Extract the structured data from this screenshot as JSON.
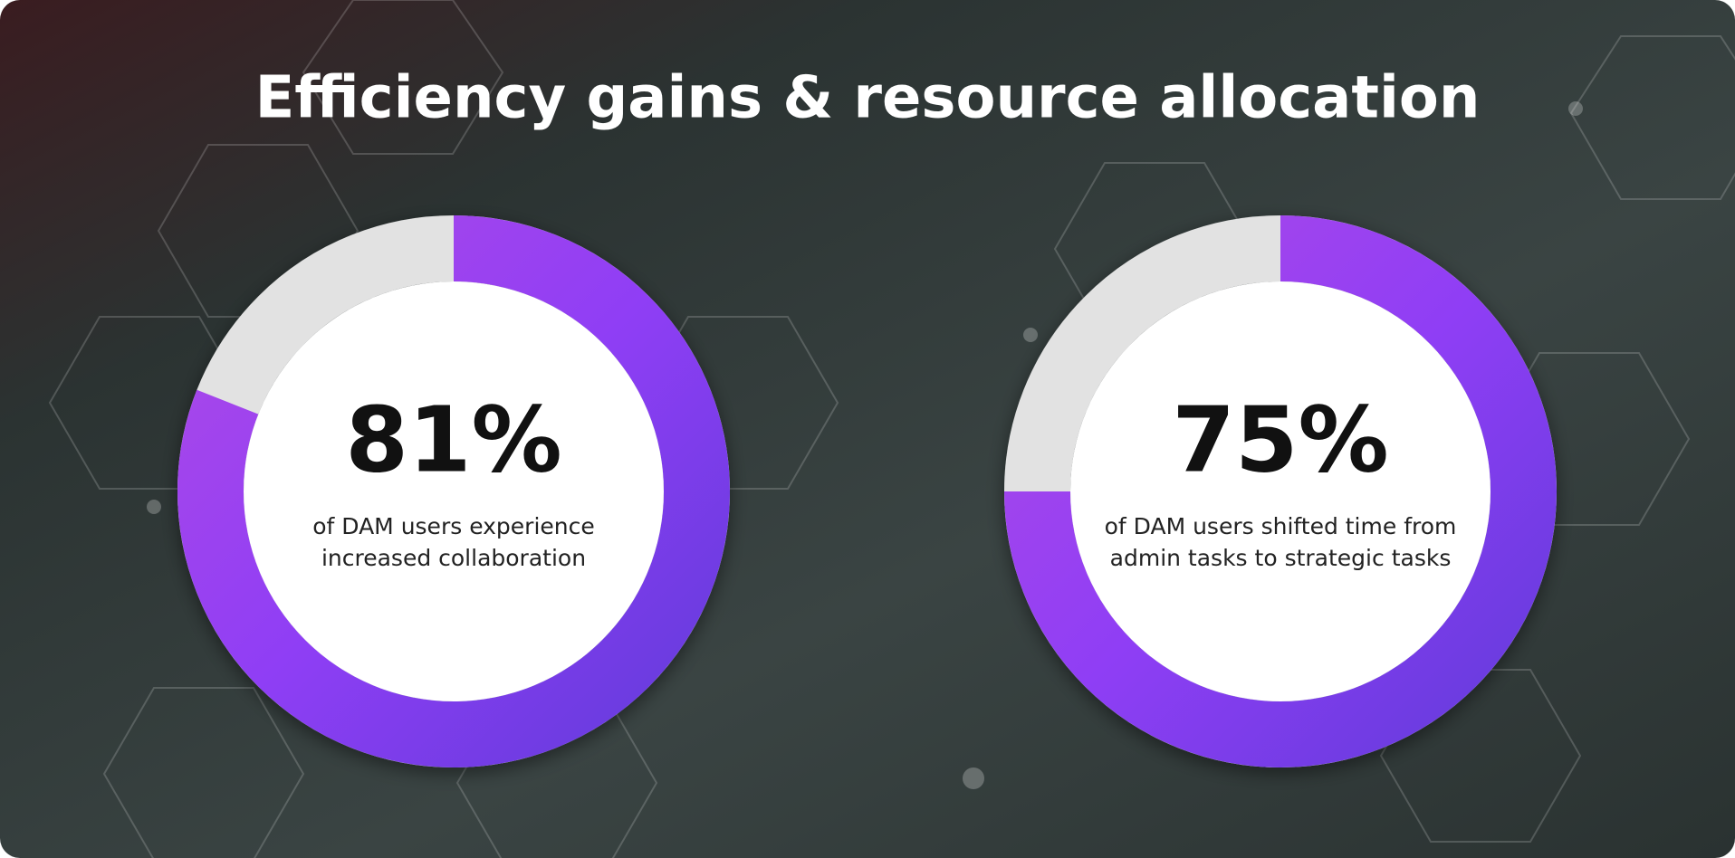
{
  "title": "Efficiency gains  & resource allocation",
  "chart_data": [
    {
      "type": "donut",
      "values": [
        81
      ],
      "value_labels": [
        "81%"
      ],
      "ylim": [
        0,
        100
      ],
      "color": "#8a3df2",
      "annotations": [
        "of DAM users experience",
        "increased collaboration"
      ]
    },
    {
      "type": "donut",
      "values": [
        75
      ],
      "value_labels": [
        "75%"
      ],
      "ylim": [
        0,
        100
      ],
      "color": "#8a3df2",
      "annotations": [
        "of DAM users shifted time from",
        "admin tasks to strategic tasks"
      ]
    }
  ]
}
